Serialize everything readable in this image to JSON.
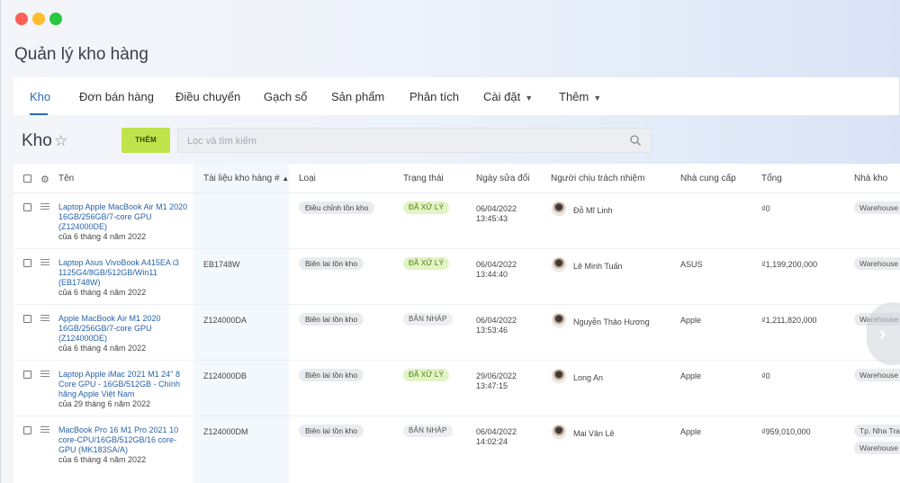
{
  "app_title": "Quản lý kho hàng",
  "nav": {
    "items": [
      {
        "label": "Kho",
        "active": true
      },
      {
        "label": "Đơn bán hàng"
      },
      {
        "label": "Điều chuyển"
      },
      {
        "label": "Gạch sổ"
      },
      {
        "label": "Sản phẩm"
      },
      {
        "label": "Phân tích"
      },
      {
        "label": "Cài đặt",
        "dropdown": true
      },
      {
        "label": "Thêm",
        "dropdown": true
      }
    ]
  },
  "page": {
    "title": "Kho",
    "add_label": "THÊM",
    "search_placeholder": "Lọc và tìm kiếm"
  },
  "table": {
    "columns": [
      "Tên",
      "Tài liệu kho hàng #",
      "Loại",
      "Trạng thái",
      "Ngày sửa đổi",
      "Người chịu trách nhiệm",
      "Nhà cung cấp",
      "Tổng",
      "Nhà kho"
    ],
    "rows": [
      {
        "name": "Laptop Apple MacBook Air M1 2020 16GB/256GB/7-core GPU (Z124000DE)",
        "created": "của 6 tháng 4 năm 2022",
        "doc": "",
        "type": "Điều chỉnh tồn kho",
        "status": "ĐÃ XỬ LÝ",
        "status_kind": "done",
        "modified_date": "06/04/2022",
        "modified_time": "13:45:43",
        "person": "Đỗ Mĩ Linh",
        "supplier": "",
        "total": "₫0",
        "warehouse": [
          "Warehouse"
        ]
      },
      {
        "name": "Laptop Asus VivoBook A415EA i3 1125G4/8GB/512GB/Win11 (EB1748W)",
        "created": "của 6 tháng 4 năm 2022",
        "doc": "EB1748W",
        "type": "Biên lai tồn kho",
        "status": "ĐÃ XỬ LÝ",
        "status_kind": "done",
        "modified_date": "06/04/2022",
        "modified_time": "13:44:40",
        "person": "Lê Minh Tuấn",
        "supplier": "ASUS",
        "total": "₫1,199,200,000",
        "warehouse": [
          "Warehouse"
        ]
      },
      {
        "name": "Apple MacBook Air M1 2020 16GB/256GB/7-core GPU (Z124000DE)",
        "created": "của 6 tháng 4 năm 2022",
        "doc": "Z124000DA",
        "type": "Biên lai tồn kho",
        "status": "BẢN NHÁP",
        "status_kind": "draft",
        "modified_date": "06/04/2022",
        "modified_time": "13:53:46",
        "person": "Nguyễn Thảo Hương",
        "supplier": "Apple",
        "total": "₫1,211,820,000",
        "warehouse": [
          "Warehouse"
        ]
      },
      {
        "name": "Laptop Apple iMac 2021 M1 24'' 8 Core GPU - 16GB/512GB - Chính hãng Apple Việt Nam",
        "created": "của 29 tháng 6 năm 2022",
        "doc": "Z124000DB",
        "type": "Biên lai tồn kho",
        "status": "ĐÃ XỬ LÝ",
        "status_kind": "done",
        "modified_date": "29/06/2022",
        "modified_time": "13:47:15",
        "person": "Long An",
        "supplier": "Apple",
        "total": "₫0",
        "warehouse": [
          "Warehouse"
        ]
      },
      {
        "name": "MacBook Pro 16 M1 Pro 2021 10 core-CPU/16GB/512GB/16 core-GPU (MK183SA/A)",
        "created": "của 6 tháng 4 năm 2022",
        "doc": "Z124000DM",
        "type": "Biên lai tồn kho",
        "status": "BẢN NHÁP",
        "status_kind": "draft",
        "modified_date": "06/04/2022",
        "modified_time": "14:02:24",
        "person": "Mai Vân Lê",
        "supplier": "Apple",
        "total": "₫959,010,000",
        "warehouse": [
          "Tp. Nha Tra",
          "Warehouse"
        ]
      }
    ]
  },
  "colors": {
    "accent": "#2a6bb3",
    "add_button": "#bfe34a",
    "status_done_bg": "#e2f3c4",
    "status_draft_bg": "#eceef1"
  },
  "icons": [
    "star-icon",
    "search-icon",
    "gear-icon",
    "drag-handle-icon",
    "chevron-down-icon",
    "chevron-right-icon"
  ]
}
